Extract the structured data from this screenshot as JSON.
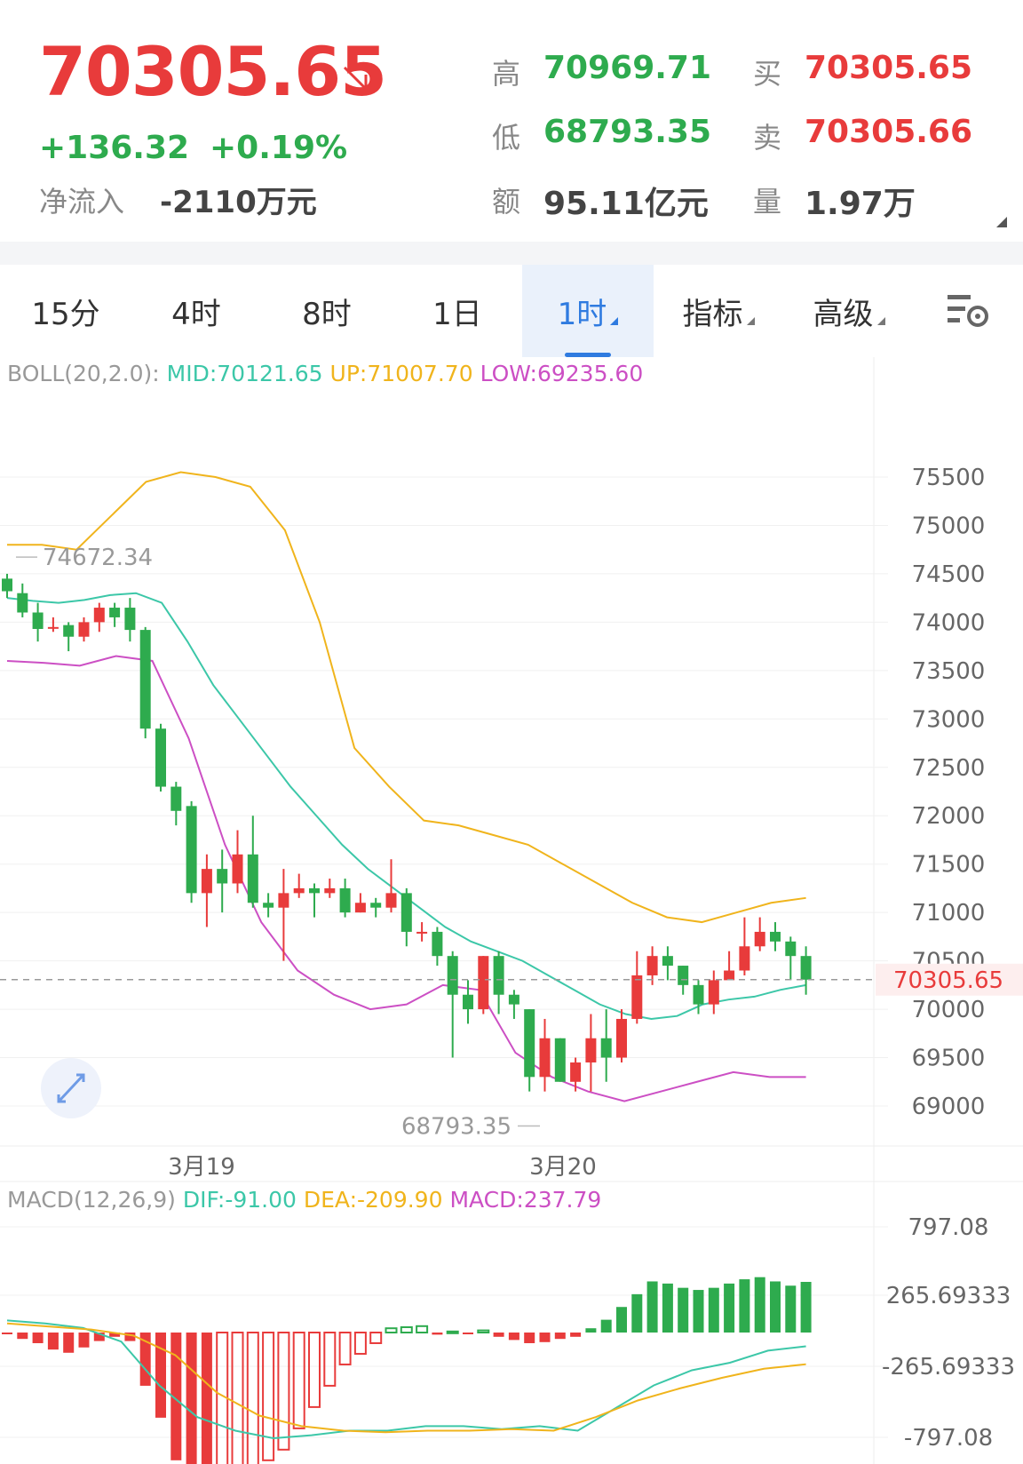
{
  "quote": {
    "price": "70305.65",
    "change": "+136.32",
    "change_pct": "+0.19%",
    "inflow_label": "净流入",
    "inflow_value": "-2110万元",
    "stats": [
      {
        "label": "高",
        "value": "70969.71",
        "color": "green"
      },
      {
        "label": "买",
        "value": "70305.65",
        "color": "red"
      },
      {
        "label": "低",
        "value": "68793.35",
        "color": "green"
      },
      {
        "label": "卖",
        "value": "70305.66",
        "color": "red"
      },
      {
        "label": "额",
        "value": "95.11亿元",
        "color": "dark"
      },
      {
        "label": "量",
        "value": "1.97万",
        "color": "dark"
      }
    ]
  },
  "tabs": [
    {
      "label": "15分",
      "active": false,
      "dropdown": false
    },
    {
      "label": "4时",
      "active": false,
      "dropdown": false
    },
    {
      "label": "8时",
      "active": false,
      "dropdown": false
    },
    {
      "label": "1日",
      "active": false,
      "dropdown": false
    },
    {
      "label": "1时",
      "active": true,
      "dropdown": true
    },
    {
      "label": "指标",
      "active": false,
      "dropdown": true
    },
    {
      "label": "高级",
      "active": false,
      "dropdown": true
    }
  ],
  "settings_icon": "chart-settings-icon",
  "boll_legend": {
    "name": "BOLL(20,2.0):",
    "mid": "MID:70121.65",
    "up": "UP:71007.70",
    "low": "LOW:69235.60"
  },
  "macd_legend": {
    "name": "MACD(12,26,9)",
    "dif": "DIF:-91.00",
    "dea": "DEA:-209.90",
    "macd": "MACD:237.79"
  },
  "colors": {
    "up": "#e83b3b",
    "down": "#2eab4e",
    "mid": "#3cc7a8",
    "upper": "#f0b41c",
    "lower": "#cc4fc4",
    "accent": "#2f7be0"
  },
  "chart_data": [
    {
      "type": "candlestick",
      "price_axis": [
        "75500",
        "75000",
        "74500",
        "74000",
        "73500",
        "73000",
        "72500",
        "72000",
        "71500",
        "71000",
        "70500",
        "70000",
        "69500",
        "69000"
      ],
      "x_labels": [
        "3月19",
        "3月20"
      ],
      "current_price_label": "70305.65",
      "max_label": "74672.34",
      "min_label": "68793.35",
      "ylim": [
        68800,
        76000
      ],
      "candles": [
        [
          74450,
          74320,
          74500,
          74250
        ],
        [
          74300,
          74100,
          74400,
          74050
        ],
        [
          74100,
          73930,
          74200,
          73800
        ],
        [
          73950,
          73950,
          74050,
          73900
        ],
        [
          73970,
          73850,
          74000,
          73700
        ],
        [
          73850,
          74000,
          74050,
          73800
        ],
        [
          74000,
          74150,
          74200,
          73900
        ],
        [
          74150,
          74050,
          74200,
          73950
        ],
        [
          74150,
          73920,
          74250,
          73800
        ],
        [
          73920,
          72900,
          73950,
          72800
        ],
        [
          72900,
          72300,
          72950,
          72250
        ],
        [
          72300,
          72050,
          72350,
          71900
        ],
        [
          72100,
          71200,
          72150,
          71100
        ],
        [
          71200,
          71450,
          71600,
          70850
        ],
        [
          71450,
          71300,
          71650,
          71000
        ],
        [
          71300,
          71600,
          71850,
          71200
        ],
        [
          71600,
          71100,
          72000,
          71050
        ],
        [
          71100,
          71050,
          71200,
          70950
        ],
        [
          71050,
          71200,
          71450,
          70500
        ],
        [
          71200,
          71250,
          71400,
          71150
        ],
        [
          71250,
          71200,
          71300,
          70950
        ],
        [
          71200,
          71250,
          71350,
          71150
        ],
        [
          71250,
          71000,
          71350,
          70950
        ],
        [
          71000,
          71100,
          71200,
          71000
        ],
        [
          71100,
          71050,
          71150,
          70950
        ],
        [
          71050,
          71200,
          71550,
          71000
        ],
        [
          71200,
          70800,
          71250,
          70650
        ],
        [
          70800,
          70800,
          70900,
          70700
        ],
        [
          70800,
          70550,
          70850,
          70450
        ],
        [
          70550,
          70150,
          70600,
          69500
        ],
        [
          70150,
          70000,
          70300,
          69850
        ],
        [
          70000,
          70550,
          70550,
          69950
        ],
        [
          70550,
          70150,
          70600,
          69950
        ],
        [
          70150,
          70050,
          70200,
          69900
        ],
        [
          70000,
          69300,
          70000,
          69150
        ],
        [
          69300,
          69700,
          69900,
          69150
        ],
        [
          69700,
          69250,
          69700,
          69250
        ],
        [
          69250,
          69450,
          69500,
          69150
        ],
        [
          69450,
          69700,
          69950,
          69150
        ],
        [
          69700,
          69500,
          70000,
          69250
        ],
        [
          69500,
          69900,
          70000,
          69450
        ],
        [
          69900,
          70350,
          70600,
          69850
        ],
        [
          70350,
          70550,
          70650,
          70250
        ],
        [
          70550,
          70450,
          70650,
          70300
        ],
        [
          70450,
          70250,
          70450,
          70150
        ],
        [
          70250,
          70050,
          70300,
          69950
        ],
        [
          70050,
          70300,
          70400,
          69950
        ],
        [
          70300,
          70400,
          70600,
          70300
        ],
        [
          70400,
          70650,
          70950,
          70350
        ],
        [
          70650,
          70800,
          70950,
          70600
        ],
        [
          70800,
          70700,
          70900,
          70600
        ],
        [
          70700,
          70550,
          70750,
          70300
        ],
        [
          70550,
          70305.65,
          70650,
          70150
        ]
      ],
      "boll_mid": [
        74250,
        74220,
        74200,
        74230,
        74280,
        74300,
        74200,
        73800,
        73350,
        73000,
        72650,
        72300,
        72000,
        71700,
        71450,
        71250,
        71050,
        70850,
        70700,
        70600,
        70500,
        70350,
        70200,
        70050,
        69950,
        69900,
        69930,
        70050,
        70100,
        70130,
        70200,
        70250
      ],
      "boll_upper": [
        74800,
        74800,
        74750,
        75100,
        75450,
        75550,
        75500,
        75400,
        74950,
        74000,
        72700,
        72300,
        71950,
        71900,
        71800,
        71700,
        71500,
        71300,
        71100,
        70950,
        70900,
        71000,
        71100,
        71150
      ],
      "boll_lower": [
        73600,
        73580,
        73550,
        73650,
        73600,
        72800,
        71700,
        70900,
        70400,
        70150,
        70000,
        70050,
        70250,
        70200,
        69550,
        69300,
        69150,
        69050,
        69150,
        69250,
        69350,
        69300,
        69300
      ]
    },
    {
      "type": "bar",
      "y_axis": [
        "797.08",
        "265.69333",
        "-265.69333",
        "-797.08"
      ],
      "ylim": [
        -797.08,
        797.08
      ],
      "histogram": [
        -8,
        -30,
        -50,
        -80,
        -95,
        -70,
        -40,
        -20,
        -40,
        -250,
        -400,
        -600,
        -720,
        -760,
        -730,
        -680,
        -650,
        -600,
        -550,
        -450,
        -350,
        -250,
        -150,
        -100,
        -50,
        20,
        25,
        30,
        -10,
        5,
        -5,
        10,
        -20,
        -35,
        -50,
        -45,
        -30,
        -20,
        20,
        60,
        120,
        180,
        240,
        230,
        210,
        200,
        210,
        230,
        250,
        260,
        240,
        220,
        237.79
      ],
      "dif": [
        80,
        60,
        30,
        -60,
        -350,
        -560,
        -650,
        -700,
        -680,
        -650,
        -650,
        -620,
        -620,
        -640,
        -620,
        -650,
        -500,
        -350,
        -250,
        -200,
        -120,
        -91
      ],
      "dea": [
        60,
        40,
        20,
        -20,
        -150,
        -400,
        -550,
        -620,
        -650,
        -660,
        -650,
        -650,
        -640,
        -650,
        -560,
        -450,
        -370,
        -300,
        -240,
        -209.9
      ]
    }
  ]
}
